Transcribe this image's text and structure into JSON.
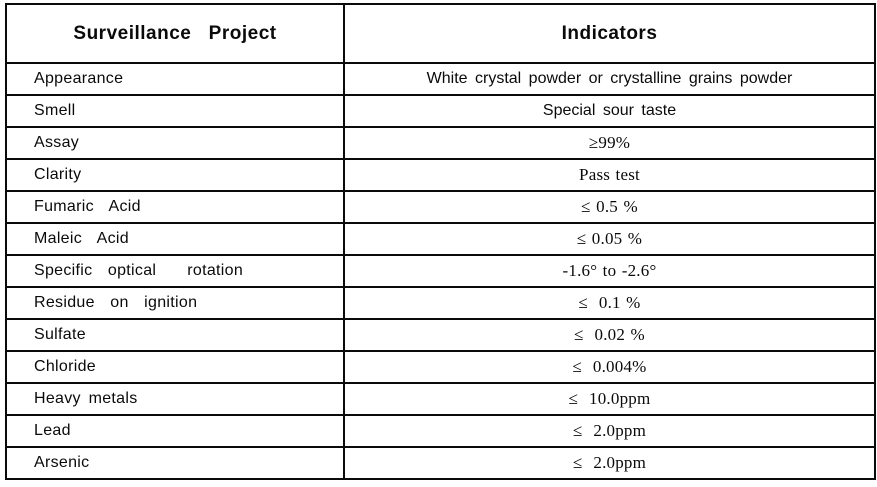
{
  "table": {
    "header": {
      "project_label": "Surveillance   Project",
      "indicator_label": "Indicators"
    },
    "rows": [
      {
        "project": "Appearance",
        "indicator": "White crystal powder or crystalline grains powder",
        "serif": false
      },
      {
        "project": "Smell",
        "indicator": "Special sour taste",
        "serif": false
      },
      {
        "project": "Assay",
        "indicator": "≥99%",
        "serif": true
      },
      {
        "project": "Clarity",
        "indicator": "Pass test",
        "serif": true
      },
      {
        "project": "Fumaric  Acid",
        "indicator": "≤ 0.5 %",
        "serif": true
      },
      {
        "project": "Maleic  Acid",
        "indicator": "≤ 0.05 %",
        "serif": true
      },
      {
        "project": "Specific  optical    rotation",
        "indicator": "-1.6° to -2.6°",
        "serif": true
      },
      {
        "project": "Residue  on  ignition",
        "indicator": "≤  0.1 %",
        "serif": true
      },
      {
        "project": "Sulfate",
        "indicator": "≤  0.02 %",
        "serif": true
      },
      {
        "project": "Chloride",
        "indicator": "≤  0.004%",
        "serif": true
      },
      {
        "project": "Heavy metals",
        "indicator": "≤  10.0ppm",
        "serif": true
      },
      {
        "project": "Lead",
        "indicator": "≤  2.0ppm",
        "serif": true
      },
      {
        "project": "Arsenic",
        "indicator": "≤  2.0ppm",
        "serif": true
      }
    ]
  },
  "colors": {
    "border": "#0a0a0a",
    "text": "#0a0a0a",
    "background": "#ffffff"
  }
}
